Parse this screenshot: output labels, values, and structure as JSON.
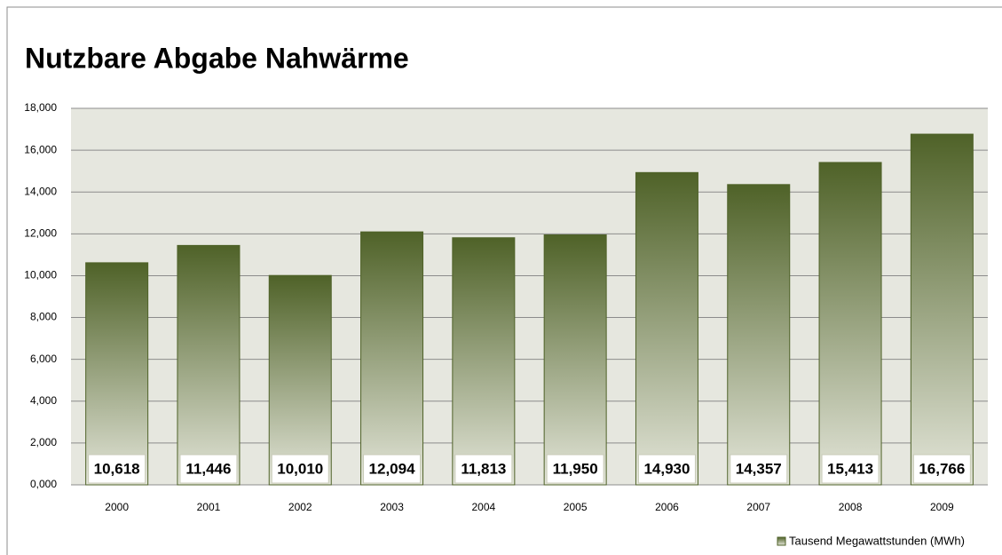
{
  "chart_data": {
    "type": "bar",
    "title": "Nutzbare Abgabe Nahwärme",
    "categories": [
      "2000",
      "2001",
      "2002",
      "2003",
      "2004",
      "2005",
      "2006",
      "2007",
      "2008",
      "2009"
    ],
    "series": [
      {
        "name": "Tausend Megawattstunden (MWh)",
        "color": "#4f6228",
        "values": [
          10618,
          11446,
          10010,
          12094,
          11813,
          11950,
          14930,
          14357,
          15413,
          16766
        ],
        "value_labels": [
          "10,618",
          "11,446",
          "10,010",
          "12,094",
          "11,813",
          "11,950",
          "14,930",
          "14,357",
          "15,413",
          "16,766"
        ]
      }
    ],
    "ylim": [
      0,
      18000
    ],
    "yticks": [
      {
        "value": 0,
        "label": "0,000"
      },
      {
        "value": 2000,
        "label": "2,000"
      },
      {
        "value": 4000,
        "label": "4,000"
      },
      {
        "value": 6000,
        "label": "6,000"
      },
      {
        "value": 8000,
        "label": "8,000"
      },
      {
        "value": 10000,
        "label": "10,000"
      },
      {
        "value": 12000,
        "label": "12,000"
      },
      {
        "value": 14000,
        "label": "14,000"
      },
      {
        "value": 16000,
        "label": "16,000"
      },
      {
        "value": 18000,
        "label": "18,000"
      }
    ],
    "grid": true,
    "legend": "bottom-right"
  }
}
